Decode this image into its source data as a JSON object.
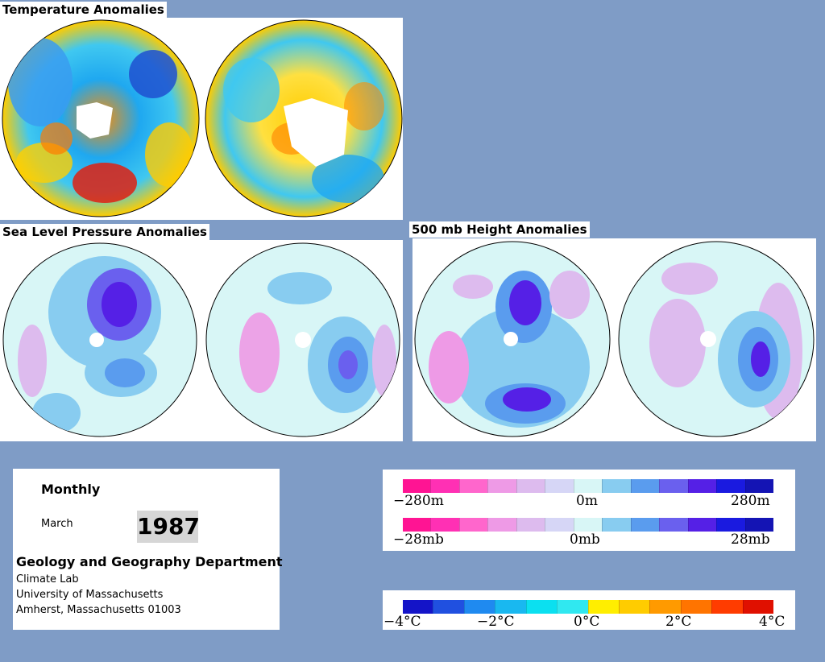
{
  "sections": {
    "temperature": {
      "title": "Temperature Anomalies"
    },
    "slp": {
      "title": "Sea Level Pressure Anomalies"
    },
    "height500": {
      "title": "500 mb Height Anomalies"
    }
  },
  "info": {
    "period": "Monthly",
    "month": "March",
    "year": "1987",
    "department": "Geology and Geography Department",
    "address_lines": [
      "Climate Lab",
      "University of Massachusetts",
      "Amherst, Massachusetts 01003"
    ]
  },
  "legends": {
    "height": {
      "labels": [
        "−280m",
        "0m",
        "280m"
      ]
    },
    "pressure": {
      "labels": [
        "−28mb",
        "0mb",
        "28mb"
      ]
    },
    "temperature": {
      "labels": [
        "−4°C",
        "−2°C",
        "0°C",
        "2°C",
        "4°C"
      ]
    }
  },
  "colors": {
    "background": "#7f9cc6",
    "anomaly_scale": [
      "#ff1493",
      "#ff30b4",
      "#ff66cc",
      "#ee9ae6",
      "#ddbbee",
      "#d6d6f6",
      "#d8f6f6",
      "#88ccf0",
      "#5a9cee",
      "#6a60ee",
      "#5520e6",
      "#1a1ae0",
      "#1414b4"
    ],
    "temp_scale": [
      "#1414c8",
      "#2050e0",
      "#1f8af0",
      "#19b8f0",
      "#0be0f0",
      "#30e8f0",
      "#ffee00",
      "#ffcc00",
      "#ff9a00",
      "#ff7400",
      "#ff3c00",
      "#e01000"
    ]
  }
}
